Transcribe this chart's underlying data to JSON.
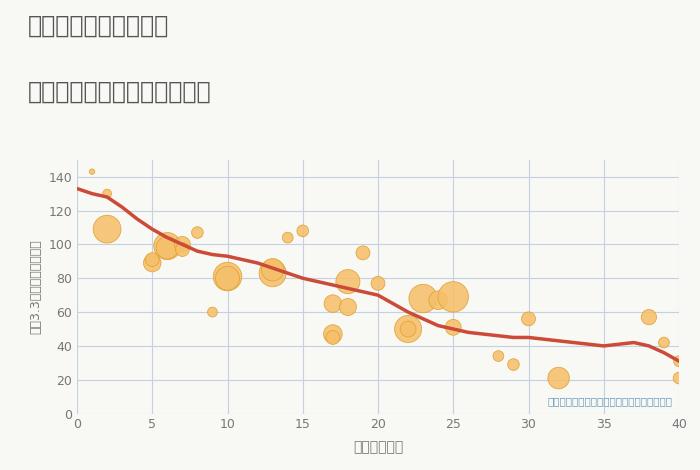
{
  "title_line1": "奈良県奈良市押熊町の",
  "title_line2": "築年数別中古マンション価格",
  "xlabel": "築年数（年）",
  "ylabel": "坪（3.3㎡）単価（万円）",
  "annotation": "円の大きさは、取引のあった物件面積を示す",
  "background_color": "#f8f8f5",
  "plot_bg_color": "#f8f8f5",
  "grid_color": "#c5d0e0",
  "bubble_color": "#f5c06a",
  "bubble_edge_color": "#e0a030",
  "line_color": "#cc4a38",
  "title_color": "#555555",
  "label_color": "#777777",
  "annotation_color": "#6699bb",
  "xlim": [
    0,
    40
  ],
  "ylim": [
    0,
    150
  ],
  "xticks": [
    0,
    5,
    10,
    15,
    20,
    25,
    30,
    35,
    40
  ],
  "yticks": [
    0,
    20,
    40,
    60,
    80,
    100,
    120,
    140
  ],
  "scatter_x": [
    1,
    2,
    2,
    5,
    5,
    6,
    6,
    7,
    7,
    8,
    9,
    10,
    10,
    13,
    13,
    14,
    15,
    17,
    17,
    17,
    18,
    18,
    19,
    20,
    22,
    22,
    23,
    24,
    25,
    25,
    28,
    29,
    30,
    32,
    38,
    39,
    40,
    40
  ],
  "scatter_y": [
    143,
    109,
    130,
    89,
    91,
    99,
    98,
    100,
    97,
    107,
    60,
    81,
    80,
    83,
    85,
    104,
    108,
    65,
    47,
    45,
    78,
    63,
    95,
    77,
    50,
    50,
    68,
    67,
    69,
    51,
    34,
    29,
    56,
    21,
    57,
    42,
    31,
    21
  ],
  "scatter_size": [
    15,
    400,
    40,
    160,
    100,
    380,
    260,
    130,
    100,
    70,
    50,
    420,
    300,
    380,
    260,
    60,
    70,
    160,
    180,
    100,
    300,
    150,
    100,
    100,
    380,
    130,
    420,
    180,
    480,
    130,
    60,
    70,
    100,
    240,
    120,
    60,
    60,
    70
  ],
  "trend_x": [
    0,
    1,
    2,
    3,
    4,
    5,
    6,
    7,
    8,
    9,
    10,
    11,
    12,
    13,
    14,
    15,
    16,
    17,
    18,
    19,
    20,
    21,
    22,
    23,
    24,
    25,
    26,
    27,
    28,
    29,
    30,
    31,
    32,
    33,
    34,
    35,
    36,
    37,
    38,
    39,
    40
  ],
  "trend_y": [
    133,
    130,
    128,
    122,
    115,
    109,
    104,
    100,
    96,
    94,
    93,
    91,
    89,
    86,
    83,
    80,
    78,
    76,
    74,
    72,
    70,
    65,
    60,
    56,
    52,
    50,
    48,
    47,
    46,
    45,
    45,
    44,
    43,
    42,
    41,
    40,
    41,
    42,
    40,
    36,
    31
  ]
}
